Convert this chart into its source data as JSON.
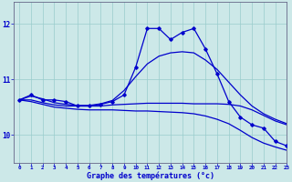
{
  "xlabel": "Graphe des températures (°c)",
  "xlim": [
    -0.5,
    23
  ],
  "ylim": [
    9.5,
    12.4
  ],
  "yticks": [
    10,
    11,
    12
  ],
  "xticks": [
    0,
    1,
    2,
    3,
    4,
    5,
    6,
    7,
    8,
    9,
    10,
    11,
    12,
    13,
    14,
    15,
    16,
    17,
    18,
    19,
    20,
    21,
    22,
    23
  ],
  "bg_color": "#cce8e8",
  "line_color": "#0000cc",
  "grid_color": "#99cccc",
  "curves": {
    "main": [
      10.63,
      10.72,
      10.63,
      10.63,
      10.6,
      10.52,
      10.52,
      10.55,
      10.6,
      10.72,
      11.22,
      11.92,
      11.92,
      11.72,
      11.85,
      11.92,
      11.55,
      11.1,
      10.6,
      10.32,
      10.18,
      10.12,
      9.88,
      9.8
    ],
    "smooth1": [
      10.63,
      10.7,
      10.65,
      10.58,
      10.55,
      10.53,
      10.53,
      10.56,
      10.62,
      10.8,
      11.05,
      11.28,
      11.42,
      11.48,
      11.5,
      11.48,
      11.35,
      11.18,
      10.95,
      10.72,
      10.52,
      10.38,
      10.28,
      10.2
    ],
    "lower1": [
      10.63,
      10.63,
      10.58,
      10.54,
      10.52,
      10.52,
      10.52,
      10.52,
      10.54,
      10.55,
      10.56,
      10.57,
      10.57,
      10.57,
      10.57,
      10.56,
      10.56,
      10.56,
      10.55,
      10.52,
      10.45,
      10.35,
      10.25,
      10.18
    ],
    "lower2": [
      10.63,
      10.6,
      10.55,
      10.5,
      10.48,
      10.46,
      10.45,
      10.45,
      10.45,
      10.44,
      10.43,
      10.43,
      10.42,
      10.41,
      10.4,
      10.38,
      10.34,
      10.28,
      10.2,
      10.08,
      9.95,
      9.85,
      9.78,
      9.72
    ]
  }
}
